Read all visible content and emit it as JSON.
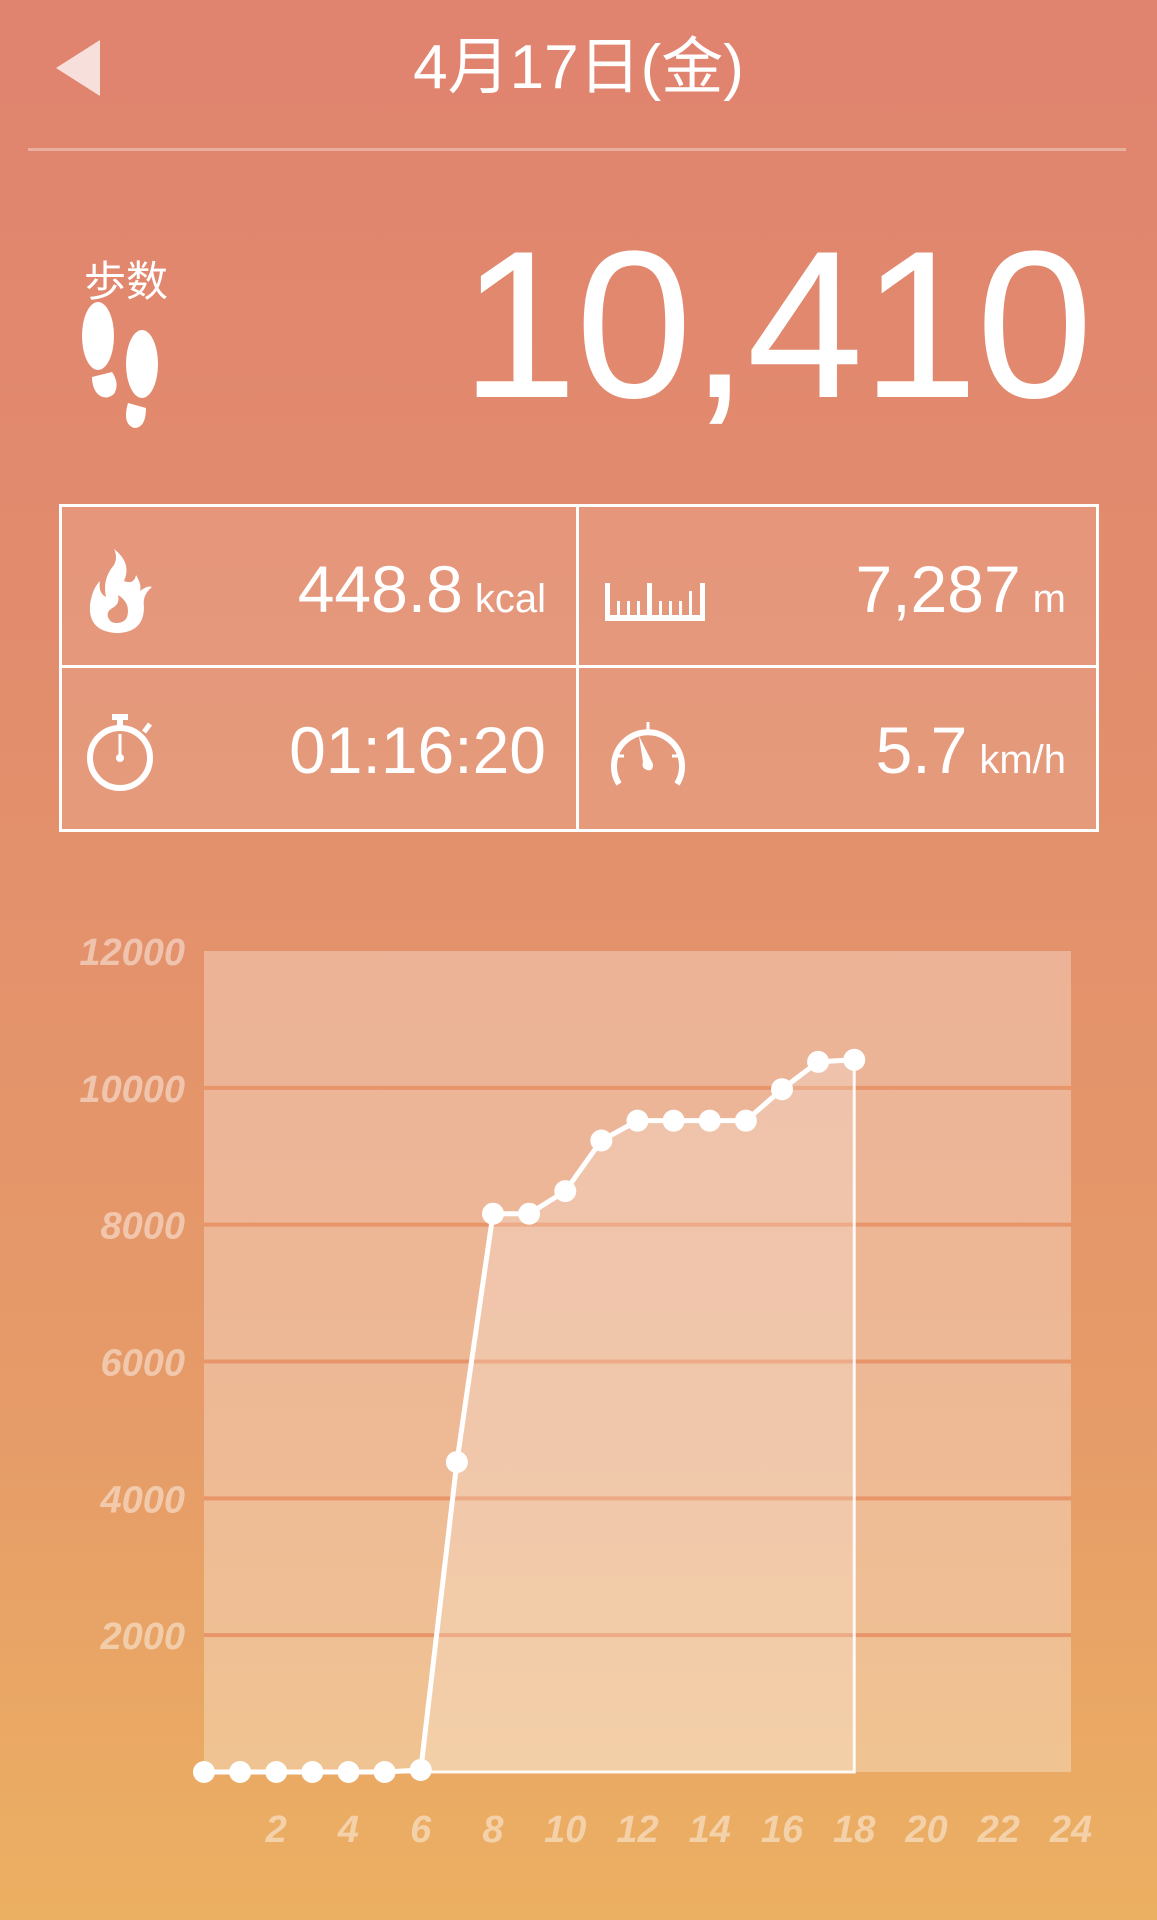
{
  "header": {
    "title": "4月17日(金)",
    "back_icon": "back-triangle-icon"
  },
  "steps": {
    "label": "歩数",
    "value": "10,410",
    "icon": "footprints-icon"
  },
  "metrics": [
    {
      "icon": "flame-icon",
      "value": "448.8",
      "unit": "kcal"
    },
    {
      "icon": "ruler-icon",
      "value": "7,287",
      "unit": "m"
    },
    {
      "icon": "stopwatch-icon",
      "value": "01:16:20",
      "unit": ""
    },
    {
      "icon": "speedometer-icon",
      "value": "5.7",
      "unit": "km/h"
    }
  ],
  "colors": {
    "bg_top": "#e0836f",
    "bg_bottom": "#ecb062",
    "line": "#ffffff",
    "gridline": "#e8956a"
  },
  "chart_data": {
    "type": "line",
    "cumulative": true,
    "x": [
      0,
      1,
      2,
      3,
      4,
      5,
      6,
      7,
      8,
      9,
      10,
      11,
      12,
      13,
      14,
      15,
      16,
      17,
      18
    ],
    "values": [
      0,
      0,
      0,
      0,
      0,
      0,
      30,
      4530,
      8160,
      8160,
      8490,
      9230,
      9520,
      9520,
      9520,
      9520,
      9980,
      10380,
      10410
    ],
    "xlim": [
      0,
      24
    ],
    "ylim": [
      0,
      12000
    ],
    "x_ticks": [
      2,
      4,
      6,
      8,
      10,
      12,
      14,
      16,
      18,
      20,
      22,
      24
    ],
    "y_ticks": [
      2000,
      4000,
      6000,
      8000,
      10000,
      12000
    ],
    "grid": true
  }
}
